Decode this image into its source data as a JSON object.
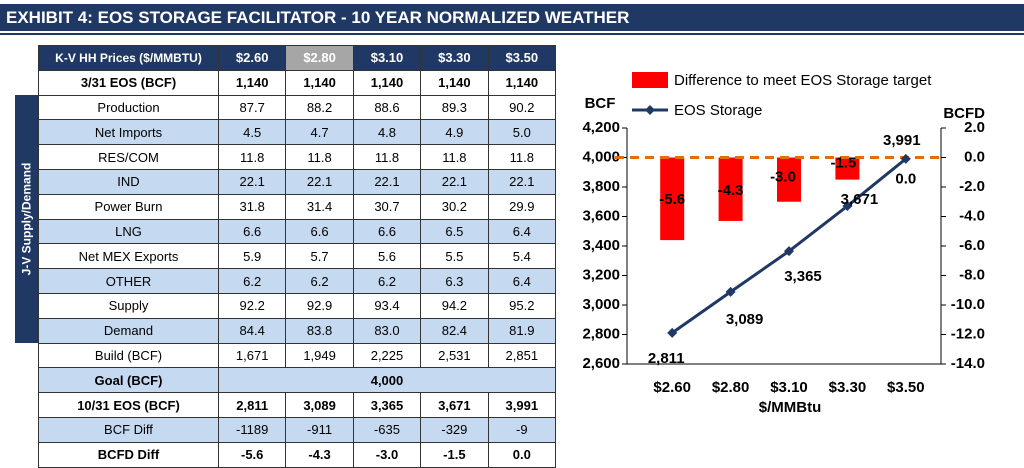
{
  "header": {
    "title": "EXHIBIT 4: EOS STORAGE FACILITATOR - 10 YEAR NORMALIZED WEATHER"
  },
  "table": {
    "side_label": "J-V Supply/Demand",
    "columns": [
      "K-V HH Prices ($/MMBTU)",
      "$2.60",
      "$2.80",
      "$3.10",
      "$3.30",
      "$3.50"
    ],
    "rows": [
      [
        "3/31 EOS (BCF)",
        "1,140",
        "1,140",
        "1,140",
        "1,140",
        "1,140"
      ],
      [
        "Production",
        "87.7",
        "88.2",
        "88.6",
        "89.3",
        "90.2"
      ],
      [
        "Net Imports",
        "4.5",
        "4.7",
        "4.8",
        "4.9",
        "5.0"
      ],
      [
        "RES/COM",
        "11.8",
        "11.8",
        "11.8",
        "11.8",
        "11.8"
      ],
      [
        "IND",
        "22.1",
        "22.1",
        "22.1",
        "22.1",
        "22.1"
      ],
      [
        "Power Burn",
        "31.8",
        "31.4",
        "30.7",
        "30.2",
        "29.9"
      ],
      [
        "LNG",
        "6.6",
        "6.6",
        "6.6",
        "6.5",
        "6.4"
      ],
      [
        "Net MEX Exports",
        "5.9",
        "5.7",
        "5.6",
        "5.5",
        "5.4"
      ],
      [
        "OTHER",
        "6.2",
        "6.2",
        "6.2",
        "6.3",
        "6.4"
      ],
      [
        "Supply",
        "92.2",
        "92.9",
        "93.4",
        "94.2",
        "95.2"
      ],
      [
        "Demand",
        "84.4",
        "83.8",
        "83.0",
        "82.4",
        "81.9"
      ],
      [
        "Build (BCF)",
        "1,671",
        "1,949",
        "2,225",
        "2,531",
        "2,851"
      ],
      [
        "Goal (BCF)",
        "4,000"
      ],
      [
        "10/31 EOS (BCF)",
        "2,811",
        "3,089",
        "3,365",
        "3,671",
        "3,991"
      ],
      [
        "BCF Diff",
        "-1189",
        "-911",
        "-635",
        "-329",
        "-9"
      ],
      [
        "BCFD Diff",
        "-5.6",
        "-4.3",
        "-3.0",
        "-1.5",
        "0.0"
      ]
    ]
  },
  "chart_data": {
    "type": "combo",
    "categories": [
      "$2.60",
      "$2.80",
      "$3.10",
      "$3.30",
      "$3.50"
    ],
    "x_label": "$/MMBtu",
    "y_label": "BCF",
    "y2_label": "BCFD",
    "series": [
      {
        "name": "Difference to meet EOS Storage target",
        "type": "bar",
        "axis": "y2",
        "color": "#ff0000",
        "values": [
          -5.6,
          -4.3,
          -3.0,
          -1.5,
          0.0
        ],
        "value_labels": [
          "-5.6",
          "-4.3",
          "-3.0",
          "-1.5",
          "0.0"
        ]
      },
      {
        "name": "EOS Storage",
        "type": "line",
        "color": "#1f3864",
        "values": [
          2811,
          3089,
          3365,
          3671,
          3991
        ],
        "value_labels": [
          "2,811",
          "3,089",
          "3,365",
          "3,671",
          "3,991"
        ]
      }
    ],
    "reference_line": {
      "value": 4000,
      "color": "#e46c0a"
    },
    "ylim": [
      2600,
      4200
    ],
    "yticks": [
      {
        "value": 2600,
        "label": "2,600"
      },
      {
        "value": 2800,
        "label": "2,800"
      },
      {
        "value": 3000,
        "label": "3,000"
      },
      {
        "value": 3200,
        "label": "3,200"
      },
      {
        "value": 3400,
        "label": "3,400"
      },
      {
        "value": 3600,
        "label": "3,600"
      },
      {
        "value": 3800,
        "label": "3,800"
      },
      {
        "value": 4000,
        "label": "4,000"
      },
      {
        "value": 4200,
        "label": "4,200"
      }
    ],
    "y2lim": [
      -14,
      2
    ],
    "y2ticks": [
      {
        "value": -14,
        "label": "-14.0"
      },
      {
        "value": -12,
        "label": "-12.0"
      },
      {
        "value": -10,
        "label": "-10.0"
      },
      {
        "value": -8,
        "label": "-8.0"
      },
      {
        "value": -6,
        "label": "-6.0"
      },
      {
        "value": -4,
        "label": "-4.0"
      },
      {
        "value": -2,
        "label": "-2.0"
      },
      {
        "value": 0,
        "label": "0.0"
      },
      {
        "value": 2,
        "label": "2.0"
      }
    ]
  }
}
